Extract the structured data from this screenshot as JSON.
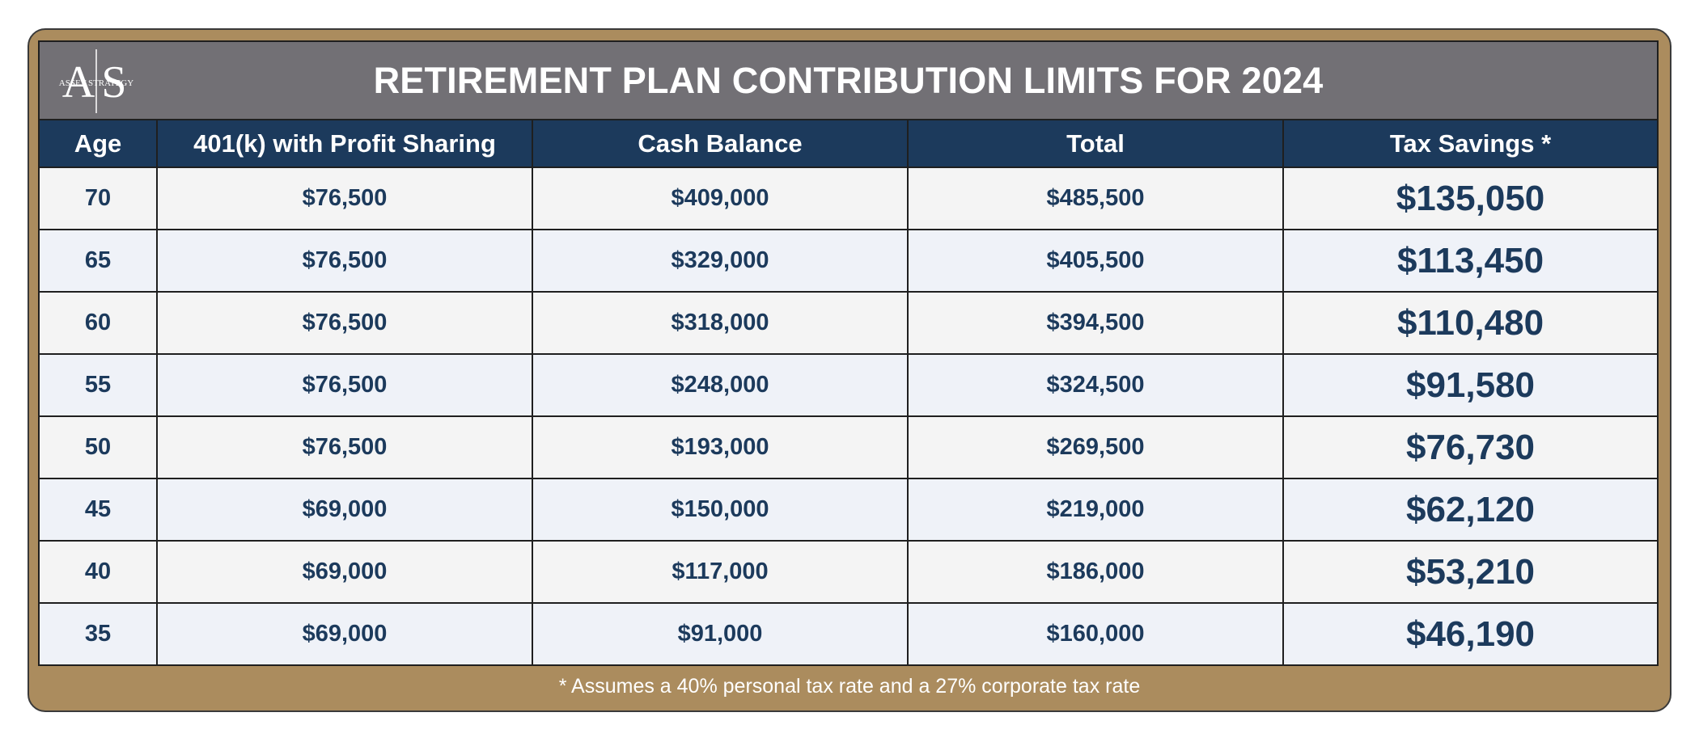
{
  "title": "RETIREMENT PLAN CONTRIBUTION LIMITS FOR 2024",
  "logo": {
    "letters": "AS",
    "text": "ASSET STRATEGY"
  },
  "table": {
    "headers": [
      "Age",
      "401(k) with Profit Sharing",
      "Cash Balance",
      "Total",
      "Tax Savings *"
    ],
    "rows": [
      [
        "70",
        "$76,500",
        "$409,000",
        "$485,500",
        "$135,050"
      ],
      [
        "65",
        "$76,500",
        "$329,000",
        "$405,500",
        "$113,450"
      ],
      [
        "60",
        "$76,500",
        "$318,000",
        "$394,500",
        "$110,480"
      ],
      [
        "55",
        "$76,500",
        "$248,000",
        "$324,500",
        "$91,580"
      ],
      [
        "50",
        "$76,500",
        "$193,000",
        "$269,500",
        "$76,730"
      ],
      [
        "45",
        "$69,000",
        "$150,000",
        "$219,000",
        "$62,120"
      ],
      [
        "40",
        "$69,000",
        "$117,000",
        "$186,000",
        "$53,210"
      ],
      [
        "35",
        "$69,000",
        "$91,000",
        "$160,000",
        "$46,190"
      ]
    ]
  },
  "footnote": "* Assumes a 40% personal tax rate and a 27% corporate tax rate",
  "colors": {
    "frame": "#ab8c5e",
    "title_bar": "#727075",
    "header": "#1c3a5c",
    "text": "#1c3a5c"
  }
}
